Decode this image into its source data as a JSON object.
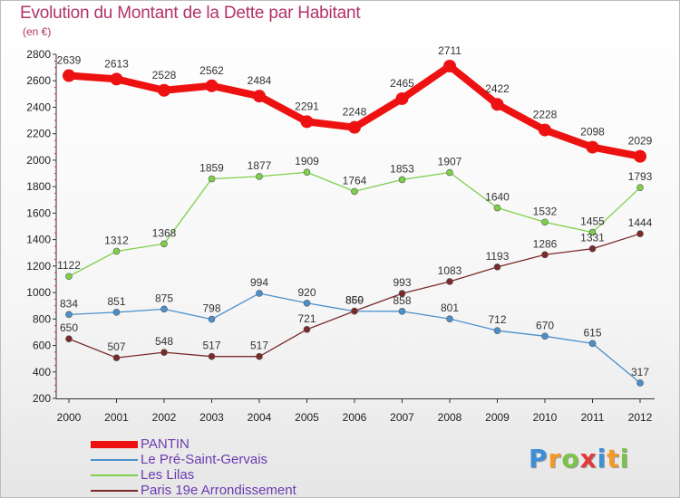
{
  "header": {
    "title": "Evolution du Montant de la Dette par Habitant",
    "subtitle": "(en €)"
  },
  "logo": {
    "letters": [
      {
        "char": "P",
        "color": "#3f8fd8"
      },
      {
        "char": "r",
        "color": "#f39a26"
      },
      {
        "char": "o",
        "color": "#7cc34a"
      },
      {
        "char": "x",
        "color": "#e2393a"
      },
      {
        "char": "i",
        "color": "#3f8fd8"
      },
      {
        "char": "t",
        "color": "#f39a26"
      },
      {
        "char": "i",
        "color": "#7cc34a"
      }
    ]
  },
  "chart_data": {
    "type": "line",
    "title": "Evolution du Montant de la Dette par Habitant",
    "ylabel": "(en €)",
    "x": [
      "2000",
      "2001",
      "2002",
      "2003",
      "2004",
      "2005",
      "2006",
      "2007",
      "2008",
      "2009",
      "2010",
      "2011",
      "2012"
    ],
    "ylim": [
      200,
      2800
    ],
    "yticks": [
      "200",
      "400",
      "600",
      "800",
      "1000",
      "1200",
      "1400",
      "1600",
      "1800",
      "2000",
      "2200",
      "2400",
      "2600",
      "2800"
    ],
    "grid": false,
    "legend": "bottom-left",
    "series": [
      {
        "name": "PANTIN",
        "color": "#ee1111",
        "width": 8,
        "marker": 7,
        "values": [
          2639,
          2613,
          2528,
          2562,
          2484,
          2291,
          2248,
          2465,
          2711,
          2422,
          2228,
          2098,
          2029
        ],
        "labels": [
          "2639",
          "2613",
          "2528",
          "2562",
          "2484",
          "2291",
          "2248",
          "2465",
          "2711",
          "2422",
          "2228",
          "2098",
          "2029"
        ]
      },
      {
        "name": "Le Pré-Saint-Gervais",
        "color": "#4a90cc",
        "width": 1.3,
        "marker": 3.5,
        "values": [
          834,
          851,
          875,
          798,
          994,
          920,
          859,
          858,
          801,
          712,
          670,
          615,
          317
        ],
        "labels": [
          "834",
          "851",
          "875",
          "798",
          "994",
          "920",
          "859",
          "858",
          "801",
          "712",
          "670",
          "615",
          "317"
        ]
      },
      {
        "name": "Les Lilas",
        "color": "#7ed04b",
        "width": 1.3,
        "marker": 3.5,
        "values": [
          1122,
          1312,
          1368,
          1859,
          1877,
          1909,
          1764,
          1853,
          1907,
          1640,
          1532,
          1455,
          1793
        ],
        "labels": [
          "1122",
          "1312",
          "1368",
          "1859",
          "1877",
          "1909",
          "1764",
          "1853",
          "1907",
          "1640",
          "1532",
          "1455",
          "1793"
        ]
      },
      {
        "name": "Paris 19e  Arrondissement",
        "color": "#7a2a2a",
        "width": 1.3,
        "marker": 3.5,
        "values": [
          650,
          507,
          548,
          517,
          517,
          721,
          860,
          993,
          1083,
          1193,
          1286,
          1331,
          1444
        ],
        "labels": [
          "650",
          "507",
          "548",
          "517",
          "517",
          "721",
          "860",
          "993",
          "1083",
          "1193",
          "1286",
          "1331",
          "1444"
        ]
      }
    ]
  }
}
